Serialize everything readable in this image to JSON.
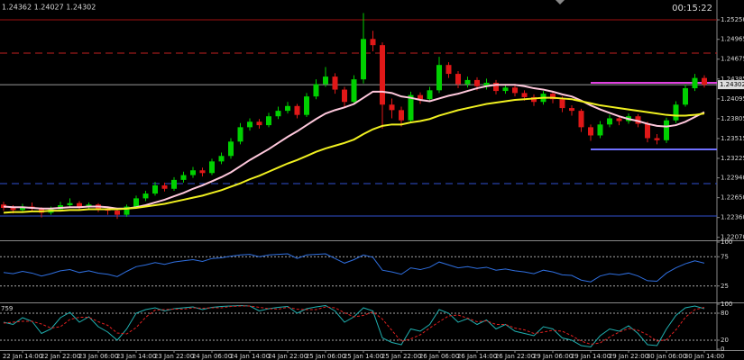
{
  "header": {
    "clock": "00:15:22"
  },
  "chart_data": [
    {
      "type": "candlestick",
      "quote": "1.24362 1.24027 1.24302",
      "categories": [
        null,
        null,
        "22 Jan 14:00",
        null,
        null,
        null,
        "22 Jan 22:00",
        null,
        null,
        null,
        "23 Jan 06:00",
        null,
        null,
        null,
        "23 Jan 14:00",
        null,
        null,
        null,
        "23 Jan 22:00",
        null,
        null,
        null,
        "24 Jan 06:00",
        null,
        null,
        null,
        "24 Jan 14:00",
        null,
        null,
        null,
        "24 Jan 22:00",
        null,
        null,
        null,
        "25 Jan 06:00",
        null,
        null,
        null,
        "25 Jan 14:00",
        null,
        null,
        null,
        "25 Jan 22:00",
        null,
        null,
        null,
        "26 Jan 06:00",
        null,
        null,
        null,
        "26 Jan 14:00",
        null,
        null,
        null,
        "26 Jan 22:00",
        null,
        null,
        null,
        "29 Jan 06:00",
        null,
        null,
        null,
        "29 Jan 14:00",
        null,
        null,
        null,
        "29 Jan 22:00",
        null,
        null,
        null,
        "30 Jan 06:00",
        null,
        null,
        null,
        "30 Jan 14:00"
      ],
      "open": [
        1.2255,
        1.225,
        1.2247,
        1.2252,
        1.2249,
        1.2243,
        1.2248,
        1.2254,
        1.2257,
        1.2251,
        1.2255,
        1.2249,
        1.2246,
        1.224,
        1.2252,
        1.2264,
        1.2271,
        1.2283,
        1.2278,
        1.2291,
        1.2298,
        1.2305,
        1.2301,
        1.2318,
        1.2326,
        1.2347,
        1.2368,
        1.2376,
        1.2371,
        1.2384,
        1.2392,
        1.2399,
        1.2386,
        1.2413,
        1.2431,
        1.2442,
        1.2423,
        1.2405,
        1.2438,
        1.2497,
        1.2488,
        1.2401,
        1.2393,
        1.2378,
        1.2415,
        1.2409,
        1.2422,
        1.2459,
        1.2446,
        1.2431,
        1.2437,
        1.2428,
        1.2433,
        1.2421,
        1.2426,
        1.2418,
        1.2412,
        1.2405,
        1.2417,
        1.2409,
        1.2396,
        1.2392,
        1.2368,
        1.2356,
        1.2372,
        1.2381,
        1.2377,
        1.2384,
        1.2373,
        1.2352,
        1.2349,
        1.2378,
        1.2401,
        1.2425,
        1.244
      ],
      "high": [
        1.2259,
        1.2254,
        1.2256,
        1.2258,
        1.2251,
        1.2252,
        1.2259,
        1.2264,
        1.226,
        1.2258,
        1.2257,
        1.2252,
        1.2249,
        1.2255,
        1.2268,
        1.2275,
        1.2288,
        1.2287,
        1.2295,
        1.2303,
        1.231,
        1.2309,
        1.2322,
        1.2331,
        1.2352,
        1.2374,
        1.2381,
        1.238,
        1.2389,
        1.2398,
        1.2405,
        1.2402,
        1.2418,
        1.2438,
        1.2456,
        1.2447,
        1.2427,
        1.2444,
        1.2535,
        1.2509,
        1.2492,
        1.241,
        1.2398,
        1.242,
        1.2419,
        1.2427,
        1.2471,
        1.2463,
        1.245,
        1.2442,
        1.2441,
        1.2439,
        1.2437,
        1.2431,
        1.2429,
        1.2422,
        1.2416,
        1.2421,
        1.242,
        1.2413,
        1.24,
        1.2395,
        1.2372,
        1.2377,
        1.2386,
        1.2385,
        1.2388,
        1.2387,
        1.2376,
        1.2358,
        1.2382,
        1.2406,
        1.2431,
        1.2446,
        1.2444
      ],
      "low": [
        1.2246,
        1.2242,
        1.2244,
        1.2245,
        1.2236,
        1.224,
        1.2246,
        1.225,
        1.2247,
        1.2248,
        1.2244,
        1.224,
        1.2234,
        1.2237,
        1.2249,
        1.226,
        1.2268,
        1.2274,
        1.2275,
        1.2287,
        1.2294,
        1.2296,
        1.2298,
        1.2314,
        1.2322,
        1.2343,
        1.2363,
        1.2366,
        1.2368,
        1.238,
        1.2388,
        1.2381,
        1.2383,
        1.2409,
        1.2427,
        1.2417,
        1.2398,
        1.2401,
        1.2432,
        1.2479,
        1.2366,
        1.2381,
        1.2369,
        1.2374,
        1.2402,
        1.2405,
        1.2418,
        1.244,
        1.2425,
        1.2426,
        1.2422,
        1.2423,
        1.2416,
        1.2417,
        1.2413,
        1.2407,
        1.2399,
        1.2401,
        1.2403,
        1.239,
        1.2385,
        1.2361,
        1.2348,
        1.2352,
        1.2368,
        1.2371,
        1.2373,
        1.2368,
        1.2346,
        1.2343,
        1.2345,
        1.2374,
        1.2398,
        1.2421,
        1.2426
      ],
      "close": [
        1.225,
        1.2247,
        1.2252,
        1.2249,
        1.2243,
        1.2248,
        1.2254,
        1.2257,
        1.2251,
        1.2255,
        1.2249,
        1.2246,
        1.224,
        1.2252,
        1.2264,
        1.2271,
        1.2283,
        1.2278,
        1.2291,
        1.2298,
        1.2305,
        1.2301,
        1.2318,
        1.2326,
        1.2347,
        1.2368,
        1.2376,
        1.2371,
        1.2384,
        1.2392,
        1.2399,
        1.2386,
        1.2413,
        1.2431,
        1.2442,
        1.2423,
        1.2405,
        1.2438,
        1.2497,
        1.2488,
        1.2401,
        1.2393,
        1.2378,
        1.2415,
        1.2409,
        1.2422,
        1.2459,
        1.2446,
        1.2431,
        1.2437,
        1.2428,
        1.2433,
        1.2421,
        1.2426,
        1.2418,
        1.2412,
        1.2405,
        1.2417,
        1.2409,
        1.2396,
        1.2392,
        1.2368,
        1.2356,
        1.2372,
        1.2381,
        1.2377,
        1.2384,
        1.2373,
        1.2352,
        1.2349,
        1.2378,
        1.2401,
        1.2425,
        1.244,
        1.24302
      ],
      "up_color": "#00d000",
      "down_color": "#e01818",
      "lines": [
        {
          "color": "#ffc8dc",
          "values": [
            1.2252,
            1.2251,
            1.2251,
            1.225,
            1.2249,
            1.2249,
            1.225,
            1.2251,
            1.2251,
            1.2252,
            1.2252,
            1.2251,
            1.2249,
            1.2249,
            1.2251,
            1.2254,
            1.2258,
            1.2262,
            1.2267,
            1.2272,
            1.2278,
            1.2283,
            1.2289,
            1.2295,
            1.2302,
            1.2311,
            1.232,
            1.2328,
            1.2336,
            1.2345,
            1.2354,
            1.2362,
            1.2371,
            1.238,
            1.2388,
            1.2393,
            1.2397,
            1.2402,
            1.2411,
            1.242,
            1.242,
            1.2418,
            1.2413,
            1.2411,
            1.2408,
            1.2406,
            1.241,
            1.2414,
            1.2417,
            1.2421,
            1.2425,
            1.2428,
            1.243,
            1.243,
            1.243,
            1.2428,
            1.2425,
            1.2423,
            1.242,
            1.2416,
            1.2413,
            1.2407,
            1.24,
            1.2394,
            1.2389,
            1.2384,
            1.238,
            1.2377,
            1.2373,
            1.237,
            1.2369,
            1.2371,
            1.2376,
            1.2383,
            1.239
          ]
        },
        {
          "color": "#f0f020",
          "values": [
            1.2243,
            1.2244,
            1.2244,
            1.2245,
            1.2245,
            1.2246,
            1.2246,
            1.2247,
            1.2247,
            1.2248,
            1.2248,
            1.2248,
            1.2248,
            1.2249,
            1.225,
            1.2252,
            1.2254,
            1.2256,
            1.2259,
            1.2262,
            1.2265,
            1.2268,
            1.2272,
            1.2276,
            1.2281,
            1.2286,
            1.2292,
            1.2297,
            1.2303,
            1.2309,
            1.2315,
            1.232,
            1.2326,
            1.2332,
            1.2337,
            1.2341,
            1.2345,
            1.235,
            1.2358,
            1.2365,
            1.237,
            1.2372,
            1.2372,
            1.2375,
            1.2377,
            1.238,
            1.2385,
            1.2389,
            1.2393,
            1.2396,
            1.2399,
            1.2402,
            1.2404,
            1.2406,
            1.2408,
            1.2409,
            1.241,
            1.2411,
            1.2411,
            1.241,
            1.2409,
            1.2406,
            1.2403,
            1.24,
            1.2398,
            1.2396,
            1.2394,
            1.2392,
            1.239,
            1.2388,
            1.2386,
            1.2385,
            1.2385,
            1.2386,
            1.2388
          ]
        }
      ],
      "levels": [
        {
          "value": 1.2525,
          "color": "#a01010",
          "style": "solid"
        },
        {
          "value": 1.24764,
          "color": "#c02020",
          "style": "dashed"
        },
        {
          "value": 1.2433,
          "color": "#e040e0",
          "style": "short"
        },
        {
          "value": 1.23356,
          "color": "#7070ff",
          "style": "short"
        },
        {
          "value": 1.22856,
          "color": "#3050d0",
          "style": "dashed"
        },
        {
          "value": 1.22382,
          "color": "#3050d0",
          "style": "solid"
        }
      ],
      "last_price": {
        "value": 1.24302,
        "label": "1.24302"
      },
      "ylim": [
        1.2204,
        1.2554
      ],
      "yticks": [
        {
          "value": 1.2525,
          "label": "1.25250"
        },
        {
          "value": 1.24965,
          "label": "1.24965"
        },
        {
          "value": 1.24675,
          "label": "1.24675"
        },
        {
          "value": 1.24385,
          "label": "1.24385"
        },
        {
          "value": 1.24095,
          "label": "1.24095"
        },
        {
          "value": 1.23805,
          "label": "1.23805"
        },
        {
          "value": 1.23515,
          "label": "1.23515"
        },
        {
          "value": 1.23225,
          "label": "1.23225"
        },
        {
          "value": 1.2294,
          "label": "1.22940"
        },
        {
          "value": 1.2265,
          "label": "1.22650"
        },
        {
          "value": 1.2236,
          "label": "1.22360"
        },
        {
          "value": 1.2207,
          "label": "1.22070"
        }
      ]
    },
    {
      "type": "line",
      "series": [
        {
          "color": "#2f6fe0",
          "values": [
            48,
            46,
            50,
            47,
            42,
            46,
            51,
            53,
            48,
            51,
            47,
            45,
            41,
            50,
            58,
            61,
            65,
            62,
            66,
            68,
            70,
            67,
            72,
            73,
            76,
            78,
            79,
            75,
            78,
            79,
            80,
            72,
            78,
            79,
            80,
            72,
            64,
            70,
            78,
            74,
            52,
            49,
            45,
            56,
            53,
            57,
            66,
            61,
            56,
            58,
            55,
            57,
            52,
            54,
            51,
            49,
            46,
            52,
            49,
            44,
            43,
            35,
            32,
            42,
            46,
            44,
            47,
            42,
            34,
            33,
            47,
            56,
            63,
            68,
            64
          ]
        }
      ],
      "ylim": [
        0,
        100
      ],
      "yticks": [
        100,
        75,
        25
      ],
      "dotted": [
        75,
        25
      ]
    },
    {
      "type": "line",
      "title": "759",
      "series": [
        {
          "color": "#20b0b0",
          "dash": false,
          "values": [
            60,
            55,
            70,
            62,
            35,
            45,
            70,
            82,
            60,
            72,
            50,
            38,
            20,
            45,
            80,
            88,
            92,
            85,
            90,
            92,
            94,
            88,
            93,
            95,
            96,
            97,
            96,
            85,
            90,
            93,
            95,
            80,
            90,
            94,
            97,
            85,
            60,
            72,
            92,
            85,
            25,
            15,
            10,
            45,
            40,
            55,
            88,
            80,
            60,
            68,
            55,
            65,
            45,
            55,
            40,
            35,
            30,
            50,
            45,
            25,
            20,
            8,
            5,
            30,
            45,
            40,
            52,
            35,
            10,
            8,
            45,
            75,
            92,
            96,
            90
          ]
        },
        {
          "color": "#e02020",
          "dash": true,
          "values": [
            58,
            60,
            62,
            62,
            56,
            47,
            50,
            66,
            71,
            71,
            61,
            53,
            36,
            34,
            48,
            71,
            87,
            88,
            89,
            89,
            92,
            91,
            92,
            92,
            95,
            96,
            96,
            93,
            90,
            89,
            93,
            89,
            88,
            88,
            94,
            92,
            81,
            72,
            75,
            83,
            67,
            42,
            17,
            23,
            32,
            47,
            61,
            74,
            76,
            69,
            61,
            63,
            55,
            55,
            47,
            43,
            35,
            38,
            42,
            40,
            30,
            18,
            11,
            14,
            27,
            38,
            46,
            42,
            32,
            18,
            21,
            43,
            71,
            88,
            93
          ]
        }
      ],
      "ylim": [
        0,
        100
      ],
      "yticks": [
        100,
        80,
        20,
        0
      ],
      "dotted": [
        80,
        20
      ]
    }
  ]
}
